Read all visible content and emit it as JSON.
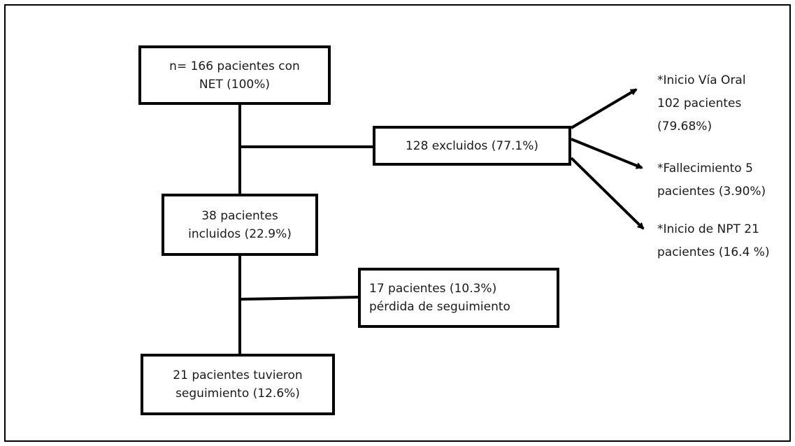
{
  "boxes": {
    "total": [
      "n= 166 pacientes con",
      "NET (100%)"
    ],
    "excluded": [
      "128 excluidos (77.1%)"
    ],
    "included": [
      "38 pacientes",
      "incluidos (22.9%)"
    ],
    "lost": [
      "17 pacientes (10.3%)",
      "pérdida de seguimiento"
    ],
    "followed": [
      "21 pacientes tuvieron",
      "seguimiento (12.6%)"
    ]
  },
  "outcomes": {
    "oral": [
      "*Inicio Vía Oral",
      "102 pacientes",
      "(79.68%)"
    ],
    "death": [
      "*Fallecimiento 5",
      "pacientes (3.90%)"
    ],
    "npt": [
      "*Inicio de NPT 21",
      "pacientes (16.4 %)"
    ]
  }
}
